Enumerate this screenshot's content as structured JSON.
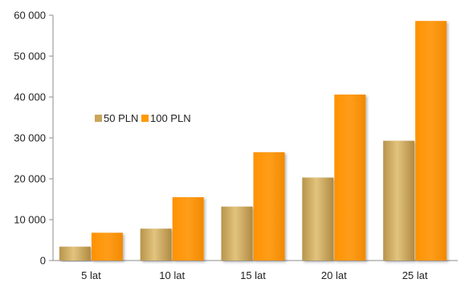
{
  "chart_data": {
    "type": "bar",
    "title": "",
    "xlabel": "",
    "ylabel": "",
    "categories": [
      "5 lat",
      "10 lat",
      "15 lat",
      "20 lat",
      "25 lat"
    ],
    "series": [
      {
        "name": "50 PLN",
        "values": [
          3400,
          7800,
          13200,
          20300,
          29300
        ],
        "color": "#C9A65A"
      },
      {
        "name": "100 PLN",
        "values": [
          6800,
          15500,
          26500,
          40600,
          58600
        ],
        "color": "#FF9900"
      }
    ],
    "ylim": [
      0,
      60000
    ],
    "yticks": [
      0,
      10000,
      20000,
      30000,
      40000,
      50000,
      60000
    ],
    "ytick_labels": [
      "0",
      "10 000",
      "20 000",
      "30 000",
      "40 000",
      "50 000",
      "60 000"
    ],
    "grid": false,
    "legend_position": "center-left"
  }
}
